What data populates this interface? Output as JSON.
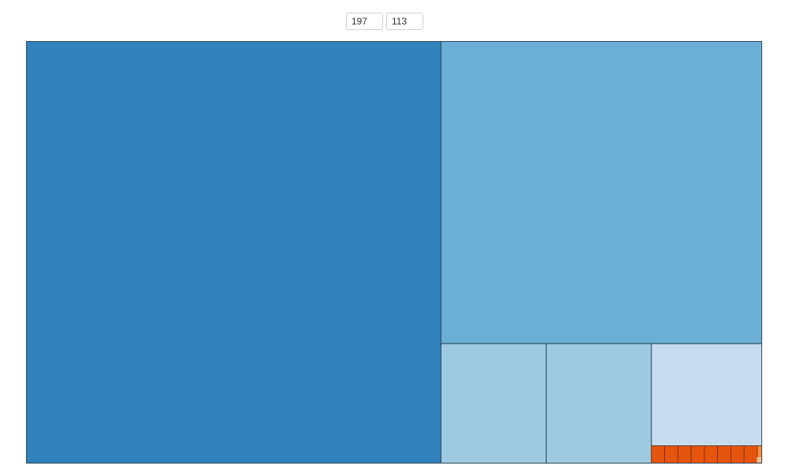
{
  "controls": {
    "input_1_value": "197",
    "input_2_value": "113"
  },
  "colors": {
    "blue_dark": "#3182bd",
    "blue_mid": "#6baed6",
    "blue_light": "#9ecae1",
    "blue_pale": "#c6dbef",
    "orange_dark": "#e6550d",
    "orange_mid": "#fd8d3c",
    "orange_light": "#fdae6b"
  },
  "chart_data": {
    "type": "treemap",
    "title": "",
    "nodes": [
      {
        "value": 285000,
        "color": "#3182bd"
      },
      {
        "value": 158000,
        "color": "#6baed6"
      },
      {
        "value": 20500,
        "color": "#9ecae1"
      },
      {
        "value": 20500,
        "color": "#9ecae1"
      },
      {
        "value": 18400,
        "color": "#c6dbef"
      },
      {
        "value": 380,
        "color": "#e6550d"
      },
      {
        "value": 380,
        "color": "#e6550d"
      },
      {
        "value": 380,
        "color": "#e6550d"
      },
      {
        "value": 380,
        "color": "#e6550d"
      },
      {
        "value": 380,
        "color": "#e6550d"
      },
      {
        "value": 380,
        "color": "#e6550d"
      },
      {
        "value": 380,
        "color": "#e6550d"
      },
      {
        "value": 380,
        "color": "#e6550d"
      },
      {
        "value": 90,
        "color": "#fd8d3c"
      },
      {
        "value": 24,
        "color": "#fdae6b"
      },
      {
        "value": 24,
        "color": "#fdae6b"
      }
    ]
  }
}
